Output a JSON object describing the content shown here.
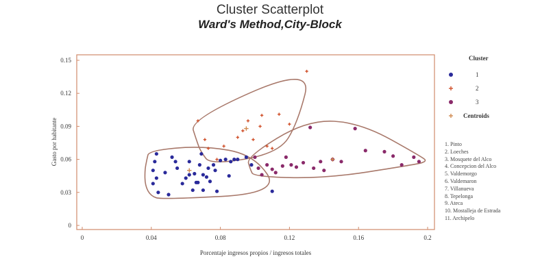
{
  "chart_data": {
    "type": "scatter",
    "title": "Cluster Scatterplot",
    "subtitle": "Ward's Method,City-Block",
    "xlabel": "Porcentaje ingresos propios / ingresos totales",
    "ylabel": "Gasto por habitante",
    "x_ticks": [
      "0",
      "0.04",
      "0.08",
      "0.12",
      "0.16",
      "0.2"
    ],
    "y_ticks": [
      "0",
      "0.03",
      "0.06",
      "0.09",
      "0.12",
      "0.15"
    ],
    "xlim": [
      0,
      0.2
    ],
    "ylim": [
      0,
      0.15
    ],
    "legend": {
      "title": "Cluster",
      "entries": [
        {
          "label": "1",
          "color": "#2a2a9a",
          "marker": "dot"
        },
        {
          "label": "2",
          "color": "#d0502a",
          "marker": "plus"
        },
        {
          "label": "3",
          "color": "#8a2a6a",
          "marker": "dot"
        },
        {
          "label": "Centroids",
          "color": "#d08a50",
          "marker": "plus"
        }
      ]
    },
    "municipalities": [
      "1. Pinto",
      "2. Loeches",
      "3. Mosquete del Alco",
      "4. Concepcion del Alco",
      "5. Valdemorgo",
      "6. Valdemaron",
      "7. Villanueva",
      "8. Tepelonga",
      "9. Ateca",
      "10. Mostalleja de Estrada",
      "11. Archipelo"
    ],
    "series": [
      {
        "name": "1",
        "color": "#2a2a9a",
        "marker": "dot",
        "points": [
          [
            0.043,
            0.065
          ],
          [
            0.042,
            0.058
          ],
          [
            0.041,
            0.05
          ],
          [
            0.043,
            0.043
          ],
          [
            0.041,
            0.038
          ],
          [
            0.044,
            0.03
          ],
          [
            0.048,
            0.048
          ],
          [
            0.052,
            0.062
          ],
          [
            0.05,
            0.028
          ],
          [
            0.054,
            0.058
          ],
          [
            0.055,
            0.052
          ],
          [
            0.058,
            0.038
          ],
          [
            0.062,
            0.046
          ],
          [
            0.062,
            0.058
          ],
          [
            0.064,
            0.032
          ],
          [
            0.065,
            0.047
          ],
          [
            0.066,
            0.039
          ],
          [
            0.068,
            0.055
          ],
          [
            0.069,
            0.065
          ],
          [
            0.07,
            0.046
          ],
          [
            0.07,
            0.032
          ],
          [
            0.073,
            0.052
          ],
          [
            0.074,
            0.04
          ],
          [
            0.072,
            0.044
          ],
          [
            0.076,
            0.055
          ],
          [
            0.077,
            0.05
          ],
          [
            0.078,
            0.031
          ],
          [
            0.08,
            0.059
          ],
          [
            0.083,
            0.06
          ],
          [
            0.086,
            0.058
          ],
          [
            0.088,
            0.06
          ],
          [
            0.09,
            0.06
          ],
          [
            0.085,
            0.045
          ],
          [
            0.095,
            0.062
          ],
          [
            0.098,
            0.055
          ],
          [
            0.11,
            0.031
          ],
          [
            0.067,
            0.039
          ],
          [
            0.06,
            0.043
          ]
        ]
      },
      {
        "name": "2",
        "color": "#d0502a",
        "marker": "plus",
        "points": [
          [
            0.067,
            0.095
          ],
          [
            0.071,
            0.078
          ],
          [
            0.073,
            0.07
          ],
          [
            0.078,
            0.06
          ],
          [
            0.082,
            0.072
          ],
          [
            0.09,
            0.08
          ],
          [
            0.093,
            0.086
          ],
          [
            0.096,
            0.095
          ],
          [
            0.099,
            0.078
          ],
          [
            0.103,
            0.09
          ],
          [
            0.104,
            0.1
          ],
          [
            0.107,
            0.072
          ],
          [
            0.11,
            0.07
          ],
          [
            0.114,
            0.101
          ],
          [
            0.12,
            0.092
          ],
          [
            0.13,
            0.14
          ]
        ]
      },
      {
        "name": "3",
        "color": "#8a2a6a",
        "marker": "dot",
        "points": [
          [
            0.1,
            0.062
          ],
          [
            0.102,
            0.052
          ],
          [
            0.104,
            0.046
          ],
          [
            0.107,
            0.055
          ],
          [
            0.11,
            0.051
          ],
          [
            0.112,
            0.048
          ],
          [
            0.116,
            0.054
          ],
          [
            0.118,
            0.062
          ],
          [
            0.121,
            0.055
          ],
          [
            0.124,
            0.053
          ],
          [
            0.128,
            0.057
          ],
          [
            0.132,
            0.089
          ],
          [
            0.134,
            0.052
          ],
          [
            0.138,
            0.058
          ],
          [
            0.14,
            0.05
          ],
          [
            0.145,
            0.06
          ],
          [
            0.15,
            0.058
          ],
          [
            0.158,
            0.088
          ],
          [
            0.164,
            0.068
          ],
          [
            0.175,
            0.067
          ],
          [
            0.18,
            0.063
          ],
          [
            0.185,
            0.055
          ],
          [
            0.192,
            0.062
          ],
          [
            0.195,
            0.058
          ]
        ]
      }
    ],
    "centroids": [
      [
        0.062,
        0.05
      ],
      [
        0.095,
        0.088
      ],
      [
        0.145,
        0.06
      ]
    ],
    "grid": false,
    "legend_position": "right"
  }
}
